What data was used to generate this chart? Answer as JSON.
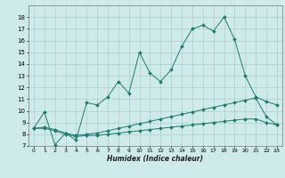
{
  "xlabel": "Humidex (Indice chaleur)",
  "bg_color": "#ceeaea",
  "line_color": "#1e7b6e",
  "grid_color": "#aacece",
  "xlim": [
    -0.5,
    23.5
  ],
  "ylim": [
    7,
    19
  ],
  "xticks": [
    0,
    1,
    2,
    3,
    4,
    5,
    6,
    7,
    8,
    9,
    10,
    11,
    12,
    13,
    14,
    15,
    16,
    17,
    18,
    19,
    20,
    21,
    22,
    23
  ],
  "yticks": [
    7,
    8,
    9,
    10,
    11,
    12,
    13,
    14,
    15,
    16,
    17,
    18
  ],
  "line1_x": [
    0,
    1,
    2,
    3,
    4,
    5,
    6,
    7,
    8,
    9,
    10,
    11,
    12,
    13,
    14,
    15,
    16,
    17,
    18,
    19,
    20,
    21,
    22,
    23
  ],
  "line1_y": [
    8.5,
    9.9,
    7.1,
    8.1,
    7.5,
    10.7,
    10.5,
    11.2,
    12.5,
    11.5,
    15.0,
    13.2,
    12.5,
    13.5,
    15.5,
    17.0,
    17.3,
    16.8,
    18.0,
    16.1,
    13.0,
    11.2,
    10.8,
    10.5
  ],
  "line2_x": [
    0,
    1,
    2,
    3,
    4,
    5,
    6,
    7,
    8,
    9,
    10,
    11,
    12,
    13,
    14,
    15,
    16,
    17,
    18,
    19,
    20,
    21,
    22,
    23
  ],
  "line2_y": [
    8.5,
    8.6,
    8.4,
    8.1,
    7.9,
    8.0,
    8.1,
    8.3,
    8.5,
    8.7,
    8.9,
    9.1,
    9.3,
    9.5,
    9.7,
    9.9,
    10.1,
    10.3,
    10.5,
    10.7,
    10.9,
    11.1,
    9.5,
    8.8
  ],
  "line3_x": [
    0,
    1,
    2,
    3,
    4,
    5,
    6,
    7,
    8,
    9,
    10,
    11,
    12,
    13,
    14,
    15,
    16,
    17,
    18,
    19,
    20,
    21,
    22,
    23
  ],
  "line3_y": [
    8.5,
    8.5,
    8.3,
    8.0,
    7.8,
    7.9,
    7.9,
    8.0,
    8.1,
    8.2,
    8.3,
    8.4,
    8.5,
    8.6,
    8.7,
    8.8,
    8.9,
    9.0,
    9.1,
    9.2,
    9.3,
    9.3,
    9.0,
    8.8
  ]
}
